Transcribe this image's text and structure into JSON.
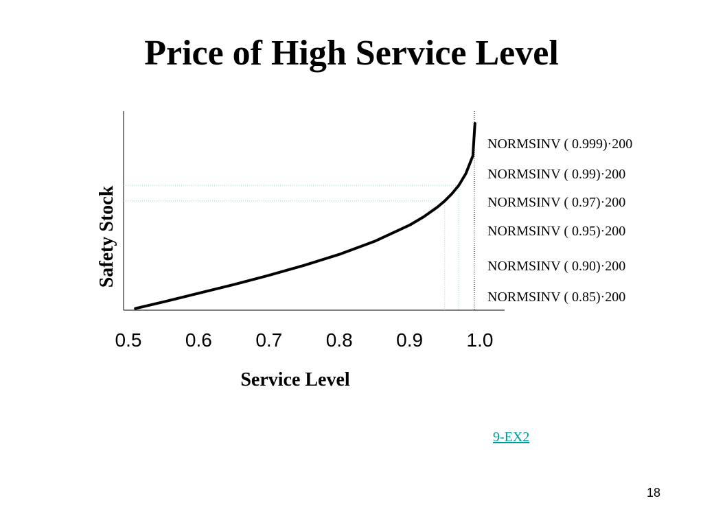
{
  "slide": {
    "title": "Price of High Service Level",
    "link_text": "9-EX2",
    "page_number": "18"
  },
  "chart_data": {
    "type": "line",
    "title": "",
    "xlabel": "Service Level",
    "ylabel": "Safety Stock",
    "x_tick_labels": [
      "0.5",
      "0.6",
      "0.7",
      "0.8",
      "0.9",
      "1.0"
    ],
    "xlim": [
      0.5,
      1.0
    ],
    "ylim": [
      0,
      620
    ],
    "grid": false,
    "series": [
      {
        "x": [
          0.51,
          0.55,
          0.6,
          0.65,
          0.7,
          0.75,
          0.8,
          0.85,
          0.9,
          0.92,
          0.94,
          0.95,
          0.96,
          0.97,
          0.98,
          0.99
        ],
        "y": [
          5,
          25,
          51,
          77,
          105,
          135,
          168,
          207,
          256,
          281,
          311,
          329,
          350,
          376,
          411,
          465
        ]
      }
    ],
    "reference_levels": [
      {
        "x": 0.95,
        "y": 329
      },
      {
        "x": 0.97,
        "y": 376
      }
    ],
    "limit_line_x": 1.0,
    "annotations": [
      "NORMSINV ( 0.999)·200",
      "NORMSINV ( 0.99)·200",
      "NORMSINV ( 0.97)·200",
      "NORMSINV ( 0.95)·200",
      "NORMSINV ( 0.90)·200",
      "NORMSINV ( 0.85)·200"
    ]
  }
}
